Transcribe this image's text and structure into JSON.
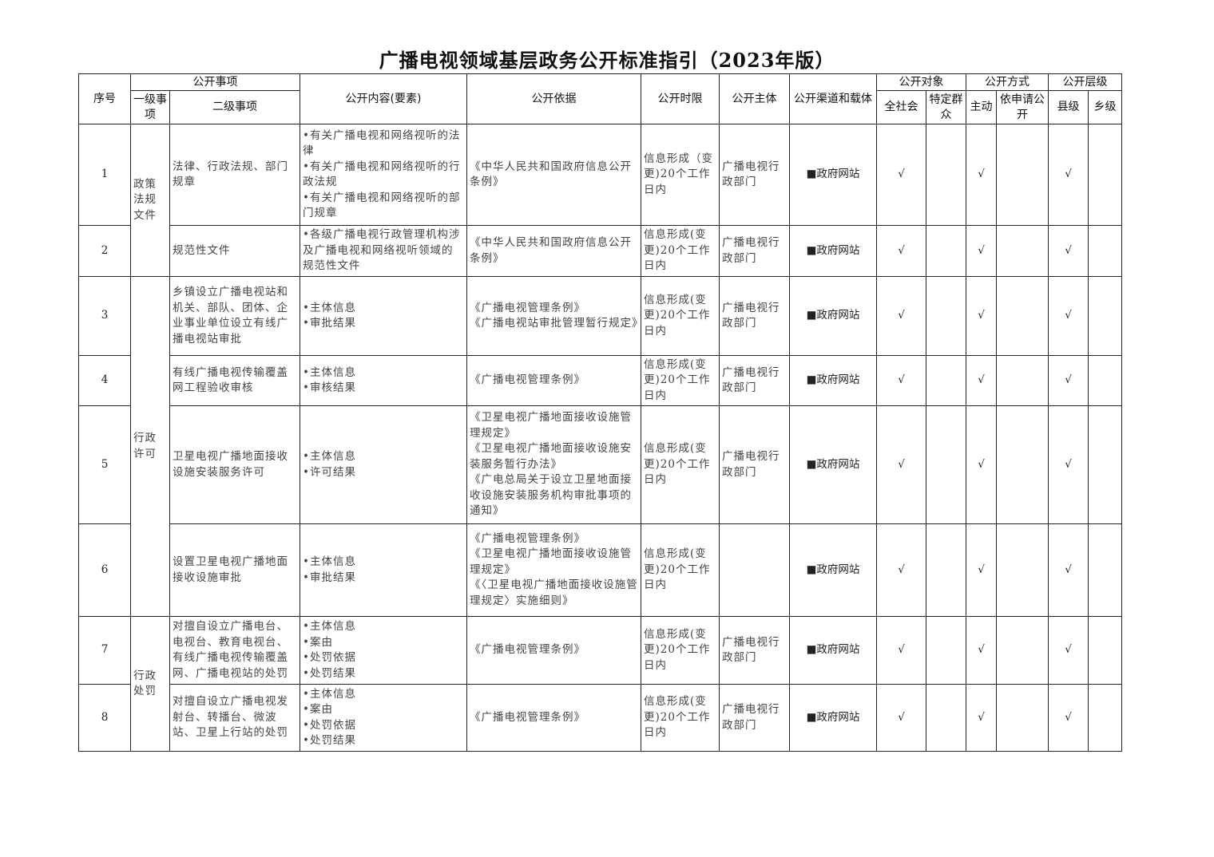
{
  "title": "广播电视领域基层政务公开标准指引（2023年版）",
  "header": {
    "no": "序号",
    "matters": "公开事项",
    "level1": "一级事项",
    "level2": "二级事项",
    "content": "公开内容(要素)",
    "basis": "公开依据",
    "time_limit": "公开时限",
    "subject": "公开主体",
    "channel": "公开渠道和载体",
    "target": "公开对象",
    "all_society": "全社会",
    "specific_group": "特定群众",
    "mode": "公开方式",
    "active": "主动",
    "on_request": "依申请公开",
    "level": "公开层级",
    "county": "县级",
    "township": "乡级"
  },
  "groups": [
    {
      "level1": "政策法规文件",
      "rows": [
        {
          "no": "1",
          "level2": "法律、行政法规、部门规章",
          "content": [
            "•有关广播电视和网络视听的法律",
            "•有关广播电视和网络视听的行政法规",
            "•有关广播电视和网络视听的部门规章"
          ],
          "basis": [
            "《中华人民共和国政府信息公开条例》"
          ],
          "time_limit": "信息形成（变更)20个工作日内",
          "subject": "广播电视行政部门",
          "channel": "■政府网站",
          "all_society": "√",
          "active": "√",
          "county": "√"
        },
        {
          "no": "2",
          "level2": "规范性文件",
          "content": [
            "•各级广播电视行政管理机构涉及广播电视和网络视听领域的规范性文件"
          ],
          "basis": [
            "《中华人民共和国政府信息公开条例》"
          ],
          "time_limit": "信息形成(变更)20个工作日内",
          "subject": "广播电视行政部门",
          "channel": "■政府网站",
          "all_society": "√",
          "active": "√",
          "county": "√"
        }
      ]
    },
    {
      "level1": "行政许可",
      "rows": [
        {
          "no": "3",
          "level2": "乡镇设立广播电视站和机关、部队、团体、企业事业单位设立有线广播电视站审批",
          "content": [
            "•主体信息",
            "•审批结果"
          ],
          "basis": [
            "《广播电视管理条例》",
            "《广播电视站审批管理暂行规定》"
          ],
          "time_limit": "信息形成(变更)20个工作日内",
          "subject": "广播电视行政部门",
          "channel": "■政府网站",
          "all_society": "√",
          "active": "√",
          "county": "√"
        },
        {
          "no": "4",
          "level2": "有线广播电视传输覆盖网工程验收审核",
          "content": [
            "•主体信息",
            "•审核结果"
          ],
          "basis": [
            "《广播电视管理条例》"
          ],
          "time_limit": "信息形成(变更)20个工作日内",
          "subject": "广播电视行政部门",
          "channel": "■政府网站",
          "all_society": "√",
          "active": "√",
          "county": "√"
        },
        {
          "no": "5",
          "level2": "卫星电视广播地面接收设施安装服务许可",
          "content": [
            "•主体信息",
            "•许可结果"
          ],
          "basis": [
            "《卫星电视广播地面接收设施管理规定》",
            "《卫星电视广播地面接收设施安装服务暂行办法》",
            "《广电总局关于设立卫星地面接收设施安装服务机构审批事项的通知》"
          ],
          "time_limit": "信息形成(变更)20个工作日内",
          "subject": "广播电视行政部门",
          "channel": "■政府网站",
          "all_society": "√",
          "active": "√",
          "county": "√"
        },
        {
          "no": "6",
          "level2": "设置卫星电视广播地面接收设施审批",
          "content": [
            "•主体信息",
            "•审批结果"
          ],
          "basis": [
            "《广播电视管理条例》",
            "《卫星电视广播地面接收设施管理规定》",
            "《〈卫星电视广播地面接收设施管理规定〉实施细则》"
          ],
          "time_limit": "信息形成(变更)20个工作日内",
          "channel": "■政府网站",
          "all_society": "√",
          "active": "√",
          "county": "√"
        }
      ]
    },
    {
      "level1": "行政处罚",
      "rows": [
        {
          "no": "7",
          "level2": "对擅自设立广播电台、电视台、教育电视台、有线广播电视传输覆盖网、广播电视站的处罚",
          "content": [
            "•主体信息",
            "•案由",
            "•处罚依据",
            "•处罚结果"
          ],
          "basis": [
            "《广播电视管理条例》"
          ],
          "time_limit": "信息形成(变更)20个工作日内",
          "subject": "广播电视行政部门",
          "channel": "■政府网站",
          "all_society": "√",
          "active": "√",
          "county": "√"
        },
        {
          "no": "8",
          "level2": "对擅自设立广播电视发射台、转播台、微波站、卫星上行站的处罚",
          "content": [
            "•主体信息",
            "•案由",
            "•处罚依据",
            "•处罚结果"
          ],
          "basis": [
            "《广播电视管理条例》"
          ],
          "time_limit": "信息形成(变更)20个工作日内",
          "subject": "广播电视行政部门",
          "channel": "■政府网站",
          "all_society": "√",
          "active": "√",
          "county": "√"
        }
      ]
    }
  ]
}
